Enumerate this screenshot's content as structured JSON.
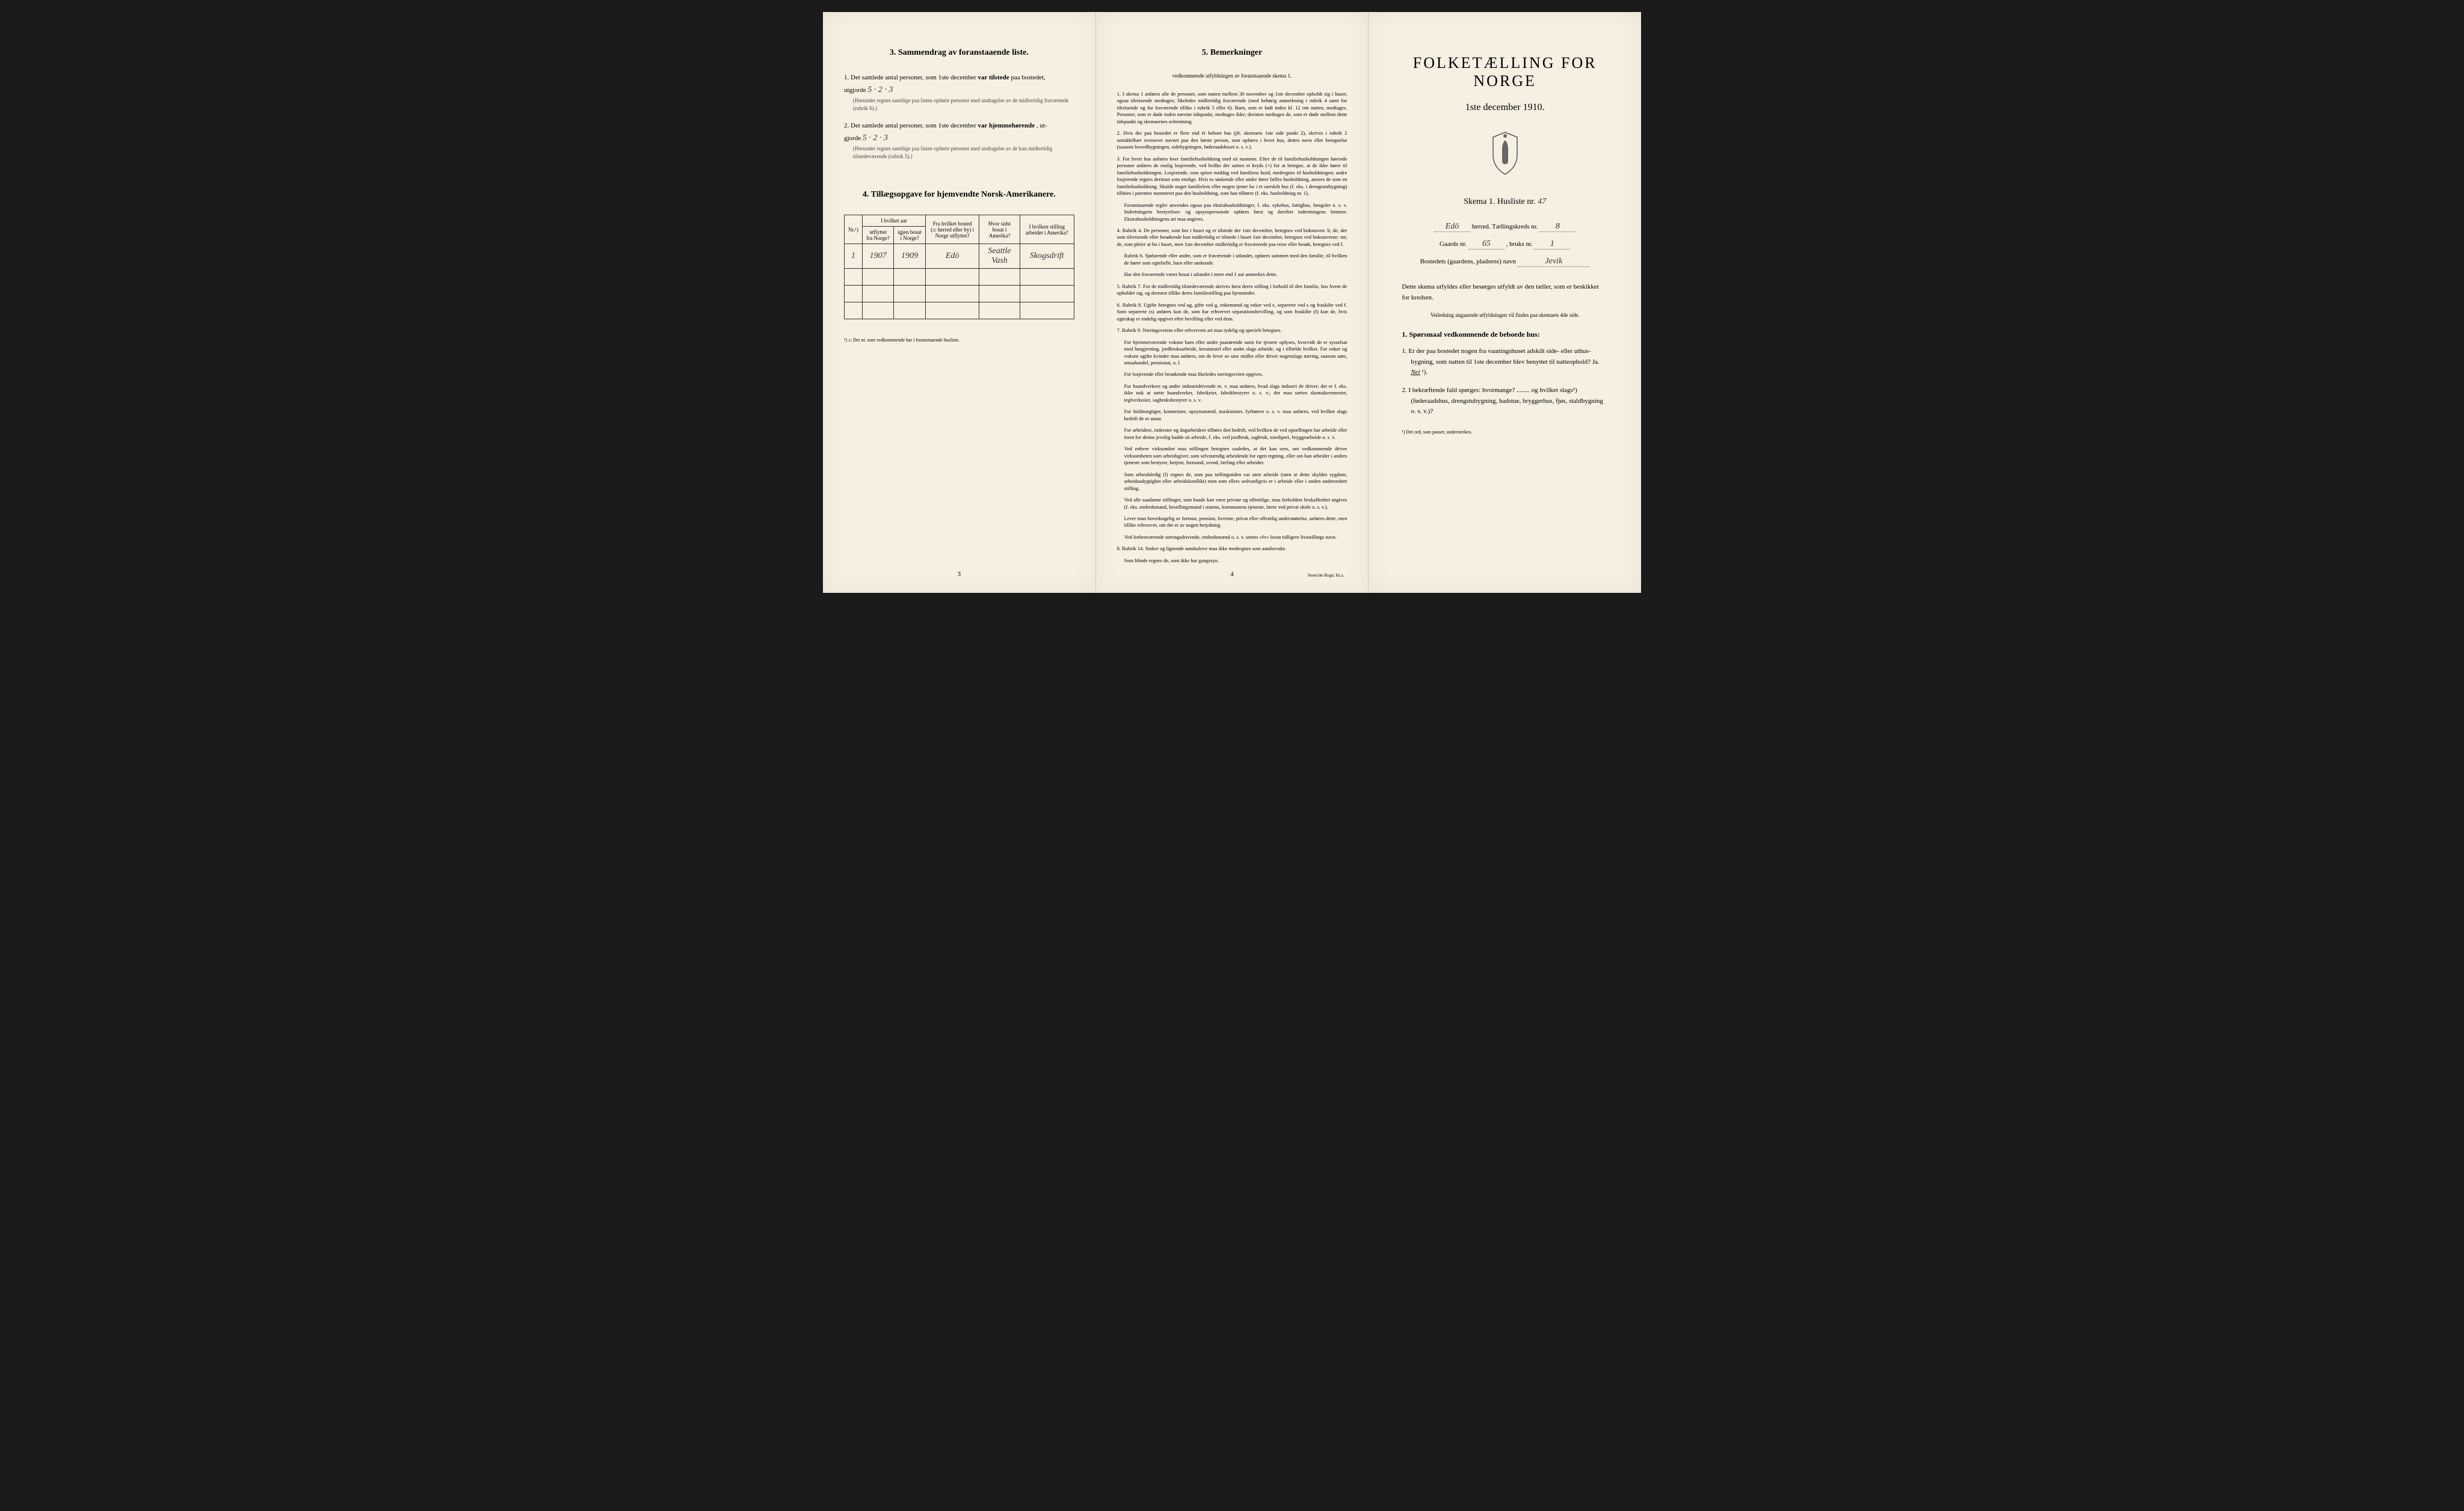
{
  "colors": {
    "paper": "#f5f0e1",
    "ink": "#222222",
    "border": "#333333",
    "background": "#1a1a1a"
  },
  "left": {
    "section3": {
      "title": "3.   Sammendrag av foranstaaende liste.",
      "item1": {
        "prefix": "1.  Det samlede antal personer, som 1ste december",
        "bold": "var tilstede",
        "suffix": "paa bostedet,",
        "line2_prefix": "utgjorde",
        "value": "5 · 2 · 3",
        "note": "(Herunder regnes samtlige paa listen opførte personer med undtagelse av de midlertidig fraværende (rubrik 6).)"
      },
      "item2": {
        "prefix": "2.  Det samlede antal personer, som 1ste december",
        "bold": "var hjemmehørende",
        "suffix": ", ut-",
        "line2_prefix": "gjorde",
        "value": "5 · 2 · 3",
        "note": "(Herunder regnes samtlige paa listen opførte personer med undtagelse av de kun midlertidig tilstedeværende (rubrik 5).)"
      }
    },
    "section4": {
      "title": "4.   Tillægsopgave for hjemvendte Norsk-Amerikanere.",
      "headers": {
        "nr": "Nr.¹)",
        "year_out_group": "I hvilket aar",
        "year_out": "utflyttet fra Norge?",
        "year_back": "igjen bosat i Norge?",
        "from_where": "Fra hvilket bosted (ɔ: herred eller by) i Norge utflyttet?",
        "where_america": "Hvor sidst bosat i Amerika?",
        "occupation": "I hvilken stilling arbeidet i Amerika?"
      },
      "rows": [
        {
          "nr": "1",
          "out": "1907",
          "back": "1909",
          "from": "Edö",
          "america": "Seattle Vash",
          "occupation": "Skogsdrift"
        }
      ],
      "empty_rows": 3,
      "footnote": "¹) ɔ: Det nr. som vedkommende har i foranstaaende husliste."
    },
    "page_num": "3"
  },
  "middle": {
    "title": "5.   Bemerkninger",
    "subtitle": "vedkommende utfyldningen av foranstaaende skema 1.",
    "items": [
      "1.  I skema 1 anføres alle de personer, som natten mellem 30 november og 1ste december opholdt sig i huset; ogsaa tilreisende medtages; likeledes midlertidig fraværende (med behørig anmerkning i rubrik 4 samt for tilreisende og for fraværende tillike i rubrik 5 eller 6). Barn, som er født inden kl. 12 om natten, medtages. Personer, som er døde inden nævnte tidspunkt, medtages ikke; derimot medtages de, som er døde mellem dette tidspunkt og skemaernes avhentning.",
      "2.  Hvis der paa bostedet er flere end ét beboet hus (jfr. skemaets 1ste side punkt 2), skrives i rubrik 2 umiddelbart ovenover navnet paa den første person, som opføres i hvert hus, dettes navn eller betegnelse (saasom hovedbygningen, sidebygningen, føderaadshuset o. s. v.).",
      "3.  For hvert hus anføres hver familiehusholdning med sit nummer. Efter de til familiehusholdningen hørende personer anføres de enslig losjerende, ved hvilke der sættes et kryds (×) for at betegne, at de ikke hører til familiehusholdningen. Losjerende, som spiser middag ved familiens bord, medregnes til husholdningen; andre losjerende regnes derimot som enslige. Hvis to søskende eller andre fører fælles husholdning, ansees de som en familiehusholdning. Skulde noget familielem eller nogen tjener bo i et særskilt hus (f. eks. i drengestubygning) tilføies i parentes nummeret paa den husholdning, som han tilhører (f. eks. husholdning nr. 1).",
      "Foranstaaende regler anvendes ogsaa paa ekstrahusholdninger, f. eks. sykehus, fattighus, fængsler o. s. v. Indretningens bestyrelses- og opsynspersonale opføres først og derefter indretningens lemmer. Ekstrahusholdningens art maa angives.",
      "4.  Rubrik 4. De personer, som bor i huset og er tilstede der 1ste december, betegnes ved bokstaven: b; de, der som tilreisende eller besøkende kun midlertidig er tilstede i huset 1ste december, betegnes ved bokstaverne: mt; de, som pleier at bo i huset, men 1ste december midlertidig er fraværende paa reise eller besøk, betegnes ved f.",
      "Rubrik 6. Sjøfarende eller andre, som er fraværende i utlandet, opføres sammen med den familie, til hvilken de hører som egtefælle, barn eller søskende.",
      "Har den fraværende været bosat i utlandet i mere end 1 aar anmerkes dette.",
      "5.  Rubrik 7. For de midlertidig tilstedeværende skrives først deres stilling i forhold til den familie, hos hvem de opholder sig, og dernæst tillike deres familiestilling paa hjemstedet.",
      "6.  Rubrik 8. Ugifte betegnes ved ug, gifte ved g, enkemænd og enker ved e, separerte ved s og fraskilte ved f. Som separerte (s) anføres kun de, som har erhvervet separationsbevilling, og som fraskilte (f) kun de, hvis egteskap er endelig opgivet efter bevilling eller ved dom.",
      "7.  Rubrik 9. Næringsveiens eller erhvervets art maa tydelig og specielt betegnes.",
      "For hjemmeværende voksne barn eller andre paarørende samt for tjenere oplyses, hvorvidt de er sysselsat med husgjerning, jordbruksarbeide, kreaturstel eller andet slags arbeide, og i tilfælde hvilket. For enker og voksne ugifte kvinder maa anføres, om de lever av sine midler eller driver nogenslags næring, saasom søm, smaahandel, pensionat, o. l.",
      "For losjerende eller besøkende maa likeledes næringsveien opgives.",
      "For haandverkere og andre industridrivende m. v. maa anføres, hvad slags industri de driver; det er f. eks. ikke nok at sætte haandverker, fabrikeier, fabrikbestyrer o. s. v.; der maa sættes skomakersmester, teglverkssier, sagbruksbestyrer o. s. v.",
      "For fuldmægtiger, kontorister, opsynsmænd, maskinister, fyrbøtere o. s. v. maa anføres, ved hvilket slags bedrift de er ansat.",
      "For arbeidere, inderster og dagarbeidere tilføies den bedrift, ved hvilken de ved optællingen har arbeide eller forut for denne jevnlig hadde sit arbeide, f. eks. ved jordbruk, sagbruk, træsliperi, bryggearbeide o. s. v.",
      "Ved enhver virksomhet maa stillingen betegnes saaledes, at det kan sees, om vedkommende driver virksomheten som arbeidsgiver, som selvstændig arbeidende for egen regning, eller om han arbeider i andres tjeneste som bestyrer, betjent, formand, svend, lærling eller arbeider.",
      "Som arbeidsledig (l) regnes de, som paa tællingstiden var uten arbeide (uten at dette skyldes sygdom, arbeidsudygtighet eller arbeidskonflikt) men som ellers sedvanligvis er i arbeide eller i anden underordnet stilling.",
      "Ved alle saadanne stillinger, som baade kan være private og offentlige, maa forholdets beskaffenhet angives (f. eks. embedsmand, bestillingsmand i statens, kommunens tjeneste, lærer ved privat skole o. s. v.).",
      "Lever man hovedsagelig av formue, pension, livrente, privat eller offentlig understøttelse, anføres dette, men tillike erhvervet, om det er av nogen betydning.",
      "Ved forhenværende næringsdrivende, embedsmænd o. s. v. sættes «fv» foran tidligere livsstillings navn.",
      "8.  Rubrik 14. Sinker og lignende aandsslove maa ikke medregnes som aandssvake.",
      "Som blinde regnes de, som ikke har gangssyn."
    ],
    "page_num": "4",
    "printer": "Steen'ske Bogtr.  Kr.a."
  },
  "right": {
    "main_title": "FOLKETÆLLING FOR NORGE",
    "date": "1ste december 1910.",
    "skema": "Skema 1.   Husliste nr.",
    "skema_nr": "47",
    "herred_label": "herred.  Tællingskreds nr.",
    "herred_value": "Edö",
    "kreds_nr": "8",
    "gaard_label": "Gaards nr.",
    "gaard_nr": "65",
    "bruks_label": ", bruks nr.",
    "bruks_nr": "1",
    "bosted_label": "Bostedets (gaardens, pladsens) navn",
    "bosted_value": "Jevik",
    "instruction": "Dette skema utfyldes eller besørges utfyldt av den tæller, som er beskikket for kredsen.",
    "sub_instruction": "Veiledning angaaende utfyldningen vil findes paa skemaets 4de side.",
    "q_title": "1. Spørsmaal vedkommende de beboede hus:",
    "q1": "1.  Er der paa bostedet nogen fra vaaningshuset adskilt side- eller uthus-bygning, som natten til 1ste december blev benyttet til natteophold?   Ja.   ",
    "q1_answer": "Nei",
    "q1_suffix": "¹).",
    "q2": "2.  I bekræftende fald spørges: hvormange? ........ og hvilket slags¹) (føderaadshus, drengstubygning, badstue, bryggerhus, fjøs, staldbygning o. s. v.)?",
    "footnote": "¹) Det ord, som passer, understrekes."
  }
}
